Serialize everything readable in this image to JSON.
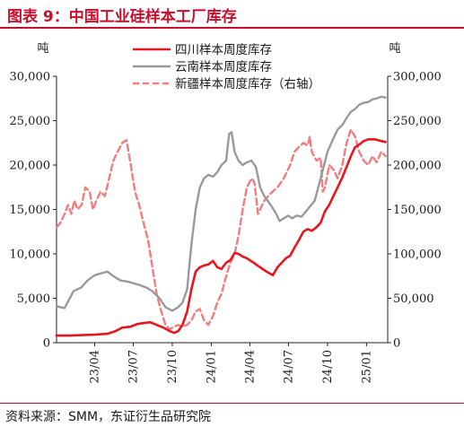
{
  "header": {
    "title": "图表 9：中国工业硅样本工厂库存"
  },
  "footer": {
    "source": "资料来源：SMM，东证衍生品研究院"
  },
  "colors": {
    "sichuan": "#e8141e",
    "yunnan": "#9a9a9a",
    "xinjiang": "#f27c7e",
    "accent": "#c8102e"
  },
  "chart_data": {
    "type": "line",
    "title": "",
    "ylabel_left": "吨",
    "ylabel_right": "吨",
    "ylim_left": [
      0,
      30000
    ],
    "ylim_right": [
      0,
      300000
    ],
    "yticks_left": [
      "0",
      "5,000",
      "10,000",
      "15,000",
      "20,000",
      "25,000",
      "30,000"
    ],
    "yticks_right": [
      "0",
      "50,000",
      "100,000",
      "150,000",
      "200,000",
      "250,000",
      "300,000"
    ],
    "xlim": [
      "2023-01-01",
      "2025-02-20"
    ],
    "xticks": [
      {
        "label": "23/04",
        "date": "2023-04-01"
      },
      {
        "label": "23/07",
        "date": "2023-07-01"
      },
      {
        "label": "23/10",
        "date": "2023-10-01"
      },
      {
        "label": "24/01",
        "date": "2024-01-01"
      },
      {
        "label": "24/04",
        "date": "2024-04-01"
      },
      {
        "label": "24/07",
        "date": "2024-07-01"
      },
      {
        "label": "24/10",
        "date": "2024-10-01"
      },
      {
        "label": "25/01",
        "date": "2025-01-01"
      }
    ],
    "legend_position": "top",
    "series": [
      {
        "name": "四川样本周度库存",
        "axis": "left",
        "style": "solid",
        "points": [
          [
            "2023-01-01",
            800
          ],
          [
            "2023-02-01",
            800
          ],
          [
            "2023-03-01",
            850
          ],
          [
            "2023-04-01",
            900
          ],
          [
            "2023-05-01",
            1000
          ],
          [
            "2023-05-20",
            1300
          ],
          [
            "2023-06-05",
            1700
          ],
          [
            "2023-06-25",
            1800
          ],
          [
            "2023-07-10",
            2100
          ],
          [
            "2023-07-25",
            2200
          ],
          [
            "2023-08-10",
            2300
          ],
          [
            "2023-08-25",
            2000
          ],
          [
            "2023-09-10",
            1700
          ],
          [
            "2023-09-25",
            1300
          ],
          [
            "2023-10-05",
            1100
          ],
          [
            "2023-10-15",
            1300
          ],
          [
            "2023-10-25",
            2000
          ],
          [
            "2023-11-05",
            3500
          ],
          [
            "2023-11-15",
            6000
          ],
          [
            "2023-11-25",
            8000
          ],
          [
            "2023-12-05",
            8500
          ],
          [
            "2023-12-15",
            8700
          ],
          [
            "2023-12-25",
            8800
          ],
          [
            "2024-01-05",
            9200
          ],
          [
            "2024-01-15",
            8500
          ],
          [
            "2024-01-25",
            8300
          ],
          [
            "2024-02-05",
            9000
          ],
          [
            "2024-02-15",
            9300
          ],
          [
            "2024-02-25",
            10100
          ],
          [
            "2024-03-05",
            10000
          ],
          [
            "2024-03-15",
            9700
          ],
          [
            "2024-03-25",
            9500
          ],
          [
            "2024-04-10",
            9000
          ],
          [
            "2024-04-25",
            8500
          ],
          [
            "2024-05-10",
            8000
          ],
          [
            "2024-05-25",
            7600
          ],
          [
            "2024-06-05",
            8500
          ],
          [
            "2024-06-15",
            9000
          ],
          [
            "2024-06-25",
            9500
          ],
          [
            "2024-07-05",
            9800
          ],
          [
            "2024-07-15",
            10700
          ],
          [
            "2024-07-25",
            11500
          ],
          [
            "2024-08-05",
            12500
          ],
          [
            "2024-08-15",
            12800
          ],
          [
            "2024-08-25",
            12600
          ],
          [
            "2024-09-05",
            13000
          ],
          [
            "2024-09-15",
            13500
          ],
          [
            "2024-09-25",
            14800
          ],
          [
            "2024-10-05",
            15500
          ],
          [
            "2024-10-15",
            16500
          ],
          [
            "2024-10-25",
            17500
          ],
          [
            "2024-11-05",
            18600
          ],
          [
            "2024-11-15",
            19800
          ],
          [
            "2024-11-25",
            21000
          ],
          [
            "2024-12-05",
            22000
          ],
          [
            "2024-12-15",
            22300
          ],
          [
            "2024-12-25",
            22700
          ],
          [
            "2025-01-05",
            22900
          ],
          [
            "2025-01-20",
            22900
          ],
          [
            "2025-02-05",
            22700
          ],
          [
            "2025-02-15",
            22600
          ]
        ]
      },
      {
        "name": "云南样本周度库存",
        "axis": "left",
        "style": "solid",
        "points": [
          [
            "2023-01-01",
            4100
          ],
          [
            "2023-01-20",
            3900
          ],
          [
            "2023-02-10",
            5800
          ],
          [
            "2023-02-28",
            6200
          ],
          [
            "2023-03-15",
            7000
          ],
          [
            "2023-04-01",
            7600
          ],
          [
            "2023-04-15",
            7800
          ],
          [
            "2023-05-01",
            8000
          ],
          [
            "2023-05-15",
            7500
          ],
          [
            "2023-06-01",
            7000
          ],
          [
            "2023-06-15",
            6900
          ],
          [
            "2023-07-01",
            6700
          ],
          [
            "2023-07-15",
            6500
          ],
          [
            "2023-08-01",
            6200
          ],
          [
            "2023-08-15",
            5800
          ],
          [
            "2023-09-01",
            5000
          ],
          [
            "2023-09-15",
            4000
          ],
          [
            "2023-10-01",
            3600
          ],
          [
            "2023-10-15",
            4000
          ],
          [
            "2023-10-25",
            4500
          ],
          [
            "2023-11-05",
            6000
          ],
          [
            "2023-11-15",
            11000
          ],
          [
            "2023-11-25",
            15000
          ],
          [
            "2023-12-05",
            17500
          ],
          [
            "2023-12-15",
            18500
          ],
          [
            "2023-12-25",
            18900
          ],
          [
            "2024-01-05",
            18700
          ],
          [
            "2024-01-15",
            19200
          ],
          [
            "2024-01-25",
            20000
          ],
          [
            "2024-02-05",
            20500
          ],
          [
            "2024-02-12",
            23500
          ],
          [
            "2024-02-18",
            23700
          ],
          [
            "2024-02-25",
            21500
          ],
          [
            "2024-03-05",
            20500
          ],
          [
            "2024-03-15",
            20000
          ],
          [
            "2024-03-25",
            20300
          ],
          [
            "2024-04-05",
            20500
          ],
          [
            "2024-04-15",
            19800
          ],
          [
            "2024-04-25",
            17500
          ],
          [
            "2024-05-05",
            16500
          ],
          [
            "2024-05-20",
            15500
          ],
          [
            "2024-06-01",
            14600
          ],
          [
            "2024-06-10",
            13700
          ],
          [
            "2024-06-20",
            14000
          ],
          [
            "2024-06-30",
            14300
          ],
          [
            "2024-07-10",
            14000
          ],
          [
            "2024-07-20",
            14300
          ],
          [
            "2024-08-01",
            14200
          ],
          [
            "2024-08-15",
            15000
          ],
          [
            "2024-09-01",
            16000
          ],
          [
            "2024-09-15",
            18500
          ],
          [
            "2024-10-01",
            21500
          ],
          [
            "2024-10-15",
            23000
          ],
          [
            "2024-10-25",
            24000
          ],
          [
            "2024-11-05",
            24500
          ],
          [
            "2024-11-15",
            25300
          ],
          [
            "2024-11-25",
            26000
          ],
          [
            "2024-12-05",
            26300
          ],
          [
            "2024-12-15",
            26800
          ],
          [
            "2024-12-25",
            27000
          ],
          [
            "2025-01-05",
            27100
          ],
          [
            "2025-01-15",
            27400
          ],
          [
            "2025-01-25",
            27500
          ],
          [
            "2025-02-05",
            27700
          ],
          [
            "2025-02-15",
            27600
          ]
        ]
      },
      {
        "name": "新疆样本周度库存（右轴）",
        "axis": "right",
        "style": "dashed",
        "points": [
          [
            "2023-01-01",
            130000
          ],
          [
            "2023-01-10",
            135000
          ],
          [
            "2023-01-20",
            145000
          ],
          [
            "2023-01-28",
            155000
          ],
          [
            "2023-02-05",
            145000
          ],
          [
            "2023-02-12",
            160000
          ],
          [
            "2023-02-20",
            150000
          ],
          [
            "2023-03-01",
            155000
          ],
          [
            "2023-03-10",
            175000
          ],
          [
            "2023-03-20",
            170000
          ],
          [
            "2023-03-28",
            150000
          ],
          [
            "2023-04-05",
            160000
          ],
          [
            "2023-04-15",
            170000
          ],
          [
            "2023-04-25",
            165000
          ],
          [
            "2023-05-05",
            185000
          ],
          [
            "2023-05-15",
            205000
          ],
          [
            "2023-05-25",
            215000
          ],
          [
            "2023-06-05",
            225000
          ],
          [
            "2023-06-15",
            228000
          ],
          [
            "2023-06-25",
            200000
          ],
          [
            "2023-07-05",
            170000
          ],
          [
            "2023-07-15",
            155000
          ],
          [
            "2023-07-25",
            135000
          ],
          [
            "2023-08-05",
            115000
          ],
          [
            "2023-08-15",
            85000
          ],
          [
            "2023-08-25",
            55000
          ],
          [
            "2023-09-05",
            35000
          ],
          [
            "2023-09-15",
            20000
          ],
          [
            "2023-09-25",
            15000
          ],
          [
            "2023-10-05",
            18000
          ],
          [
            "2023-10-15",
            20000
          ],
          [
            "2023-10-25",
            18000
          ],
          [
            "2023-11-05",
            20000
          ],
          [
            "2023-11-15",
            25000
          ],
          [
            "2023-11-25",
            35000
          ],
          [
            "2023-12-05",
            38000
          ],
          [
            "2023-12-15",
            25000
          ],
          [
            "2023-12-25",
            20000
          ],
          [
            "2024-01-05",
            30000
          ],
          [
            "2024-01-15",
            45000
          ],
          [
            "2024-01-25",
            55000
          ],
          [
            "2024-02-05",
            75000
          ],
          [
            "2024-02-15",
            90000
          ],
          [
            "2024-02-25",
            100000
          ],
          [
            "2024-03-05",
            120000
          ],
          [
            "2024-03-15",
            150000
          ],
          [
            "2024-03-25",
            175000
          ],
          [
            "2024-04-05",
            185000
          ],
          [
            "2024-04-12",
            180000
          ],
          [
            "2024-04-20",
            145000
          ],
          [
            "2024-04-25",
            150000
          ],
          [
            "2024-05-05",
            160000
          ],
          [
            "2024-05-20",
            168000
          ],
          [
            "2024-06-05",
            175000
          ],
          [
            "2024-06-20",
            185000
          ],
          [
            "2024-07-05",
            200000
          ],
          [
            "2024-07-15",
            215000
          ],
          [
            "2024-07-25",
            220000
          ],
          [
            "2024-08-05",
            225000
          ],
          [
            "2024-08-15",
            222000
          ],
          [
            "2024-08-20",
            232000
          ],
          [
            "2024-08-25",
            215000
          ],
          [
            "2024-09-05",
            205000
          ],
          [
            "2024-09-15",
            208000
          ],
          [
            "2024-09-20",
            170000
          ],
          [
            "2024-09-25",
            175000
          ],
          [
            "2024-10-05",
            200000
          ],
          [
            "2024-10-15",
            195000
          ],
          [
            "2024-10-25",
            185000
          ],
          [
            "2024-11-05",
            200000
          ],
          [
            "2024-11-15",
            225000
          ],
          [
            "2024-11-25",
            240000
          ],
          [
            "2024-12-05",
            232000
          ],
          [
            "2024-12-15",
            215000
          ],
          [
            "2024-12-25",
            205000
          ],
          [
            "2025-01-05",
            200000
          ],
          [
            "2025-01-15",
            210000
          ],
          [
            "2025-01-25",
            203000
          ],
          [
            "2025-02-05",
            215000
          ],
          [
            "2025-02-15",
            210000
          ]
        ]
      }
    ]
  }
}
